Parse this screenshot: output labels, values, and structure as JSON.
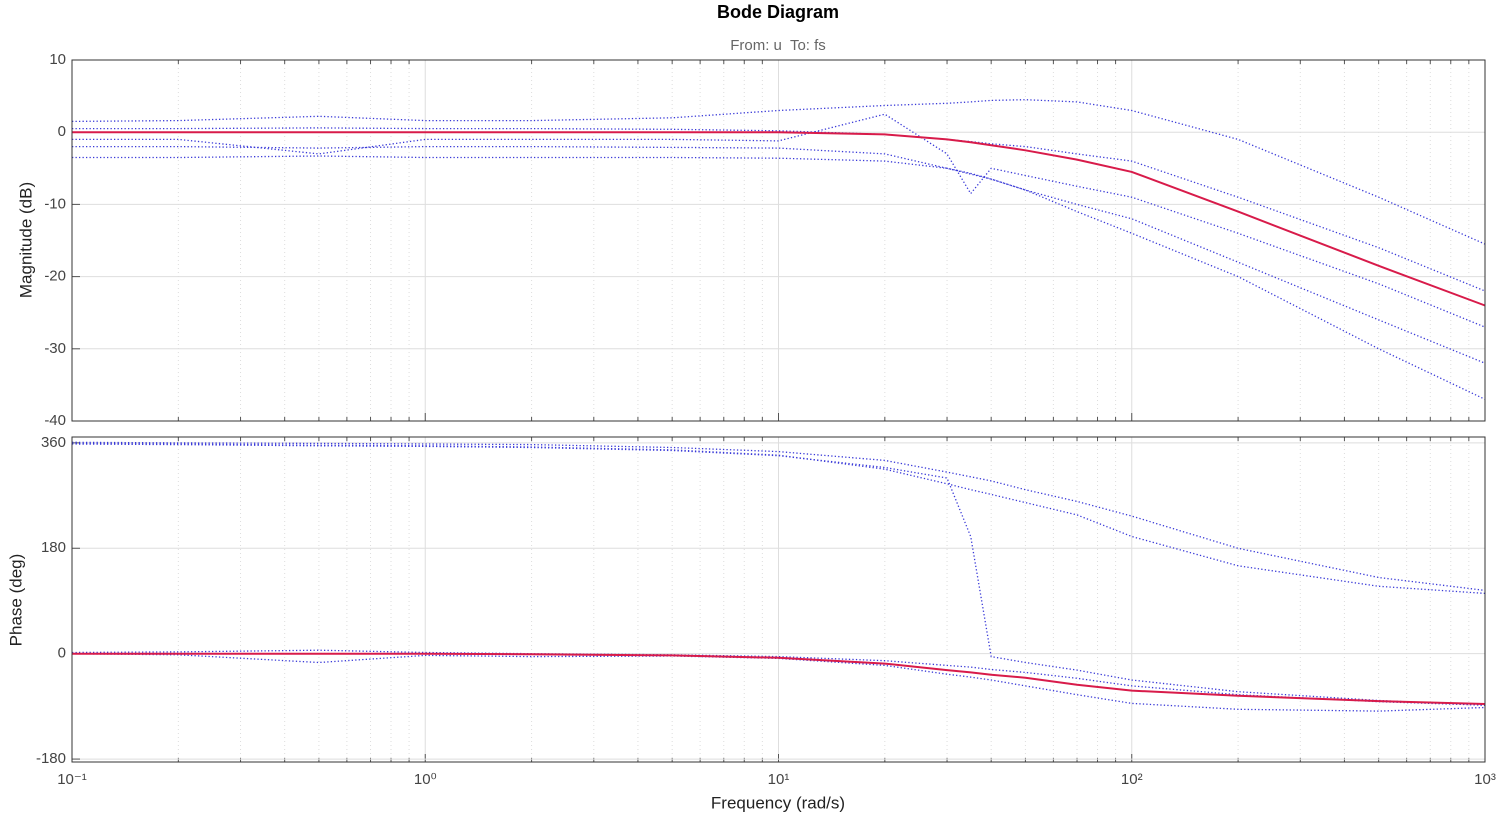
{
  "chart_data": [
    {
      "type": "line",
      "title": "Bode Diagram",
      "subtitle": "From: u  To: fs",
      "y_label": "Magnitude (dB)",
      "log_x": true,
      "grid": true,
      "xlim": [
        0.1,
        1000
      ],
      "xticks": [
        0.1,
        1,
        10,
        100,
        1000
      ],
      "ylim": [
        -40,
        10
      ],
      "yticks": [
        -40,
        -30,
        -20,
        -10,
        0,
        10
      ],
      "x": [
        0.1,
        0.2,
        0.5,
        1,
        2,
        5,
        10,
        20,
        30,
        35,
        40,
        50,
        70,
        100,
        200,
        500,
        1000
      ],
      "series": [
        {
          "color": "#3a3ad8",
          "line_style": "dotted",
          "values": [
            1.5,
            1.6,
            2.2,
            1.6,
            1.6,
            2,
            3,
            3.7,
            4,
            4.2,
            4.4,
            4.5,
            4.2,
            3,
            -1,
            -9,
            -15.5
          ]
        },
        {
          "color": "#3a3ad8",
          "line_style": "dotted",
          "values": [
            -2,
            -2,
            -2.2,
            -2,
            -2,
            -2.1,
            -2.2,
            -3,
            -5,
            -5.8,
            -6.5,
            -8,
            -11,
            -14,
            -20,
            -30,
            -37
          ]
        },
        {
          "color": "#3a3ad8",
          "line_style": "dotted",
          "values": [
            0.5,
            0.5,
            0.6,
            0.5,
            0.5,
            0.4,
            0.2,
            -0.3,
            -1,
            -1.3,
            -1.6,
            -2,
            -3,
            -4,
            -9,
            -16,
            -22
          ]
        },
        {
          "color": "#3a3ad8",
          "line_style": "dotted",
          "values": [
            -3.5,
            -3.5,
            -3.3,
            -3.5,
            -3.5,
            -3.5,
            -3.6,
            -4,
            -5,
            -5.7,
            -6.5,
            -8,
            -10,
            -12,
            -18,
            -26,
            -32
          ]
        },
        {
          "color": "#3a3ad8",
          "line_style": "dotted",
          "values": [
            -1,
            -1,
            -3,
            -1,
            -1,
            -1,
            -1.2,
            2.5,
            -3,
            -8.5,
            -5,
            -6,
            -7.5,
            -9,
            -14,
            -21,
            -27
          ]
        },
        {
          "color": "#d81b4a",
          "line_style": "solid",
          "values": [
            0,
            0,
            0,
            0,
            0,
            0,
            0,
            -0.3,
            -1,
            -1.4,
            -1.8,
            -2.5,
            -3.8,
            -5.5,
            -11,
            -18.5,
            -24
          ]
        }
      ]
    },
    {
      "type": "line",
      "y_label": "Phase (deg)",
      "x_label": "Frequency  (rad/s)",
      "log_x": true,
      "grid": true,
      "xlim": [
        0.1,
        1000
      ],
      "xticks": [
        {
          "value": 0.1,
          "label": "10⁻¹"
        },
        {
          "value": 1,
          "label": "10⁰"
        },
        {
          "value": 10,
          "label": "10¹"
        },
        {
          "value": 100,
          "label": "10²"
        },
        {
          "value": 1000,
          "label": "10³"
        }
      ],
      "ylim": [
        -185,
        370
      ],
      "yticks": [
        -180,
        0,
        180,
        360
      ],
      "x": [
        0.1,
        0.2,
        0.5,
        1,
        2,
        5,
        10,
        20,
        30,
        35,
        40,
        50,
        70,
        100,
        200,
        500,
        1000
      ],
      "series": [
        {
          "color": "#3a3ad8",
          "line_style": "dotted",
          "values": [
            359,
            358,
            356,
            355,
            353,
            348,
            339,
            315,
            290,
            280,
            272,
            258,
            237,
            200,
            150,
            115,
            103
          ]
        },
        {
          "color": "#3a3ad8",
          "line_style": "dotted",
          "values": [
            358,
            357,
            355,
            354,
            352,
            347,
            338,
            318,
            300,
            200,
            -5,
            -15,
            -28,
            -45,
            -65,
            -80,
            -88
          ]
        },
        {
          "color": "#3a3ad8",
          "line_style": "dotted",
          "values": [
            361,
            360,
            359,
            358,
            357,
            352,
            345,
            330,
            310,
            302,
            295,
            280,
            260,
            235,
            180,
            130,
            108
          ]
        },
        {
          "color": "#3a3ad8",
          "line_style": "dotted",
          "values": [
            2,
            3,
            6,
            2,
            0,
            -2,
            -5,
            -12,
            -20,
            -23,
            -27,
            -32,
            -42,
            -55,
            -70,
            -82,
            -88
          ]
        },
        {
          "color": "#3a3ad8",
          "line_style": "dotted",
          "values": [
            0,
            -2,
            -15,
            -3,
            -5,
            -4,
            -8,
            -20,
            -35,
            -40,
            -45,
            -55,
            -70,
            -85,
            -95,
            -98,
            -92
          ]
        },
        {
          "color": "#d81b4a",
          "line_style": "solid",
          "values": [
            0,
            0,
            0,
            0,
            -1,
            -3,
            -7,
            -17,
            -28,
            -32,
            -36,
            -41,
            -53,
            -63,
            -72,
            -81,
            -86
          ]
        }
      ]
    }
  ]
}
